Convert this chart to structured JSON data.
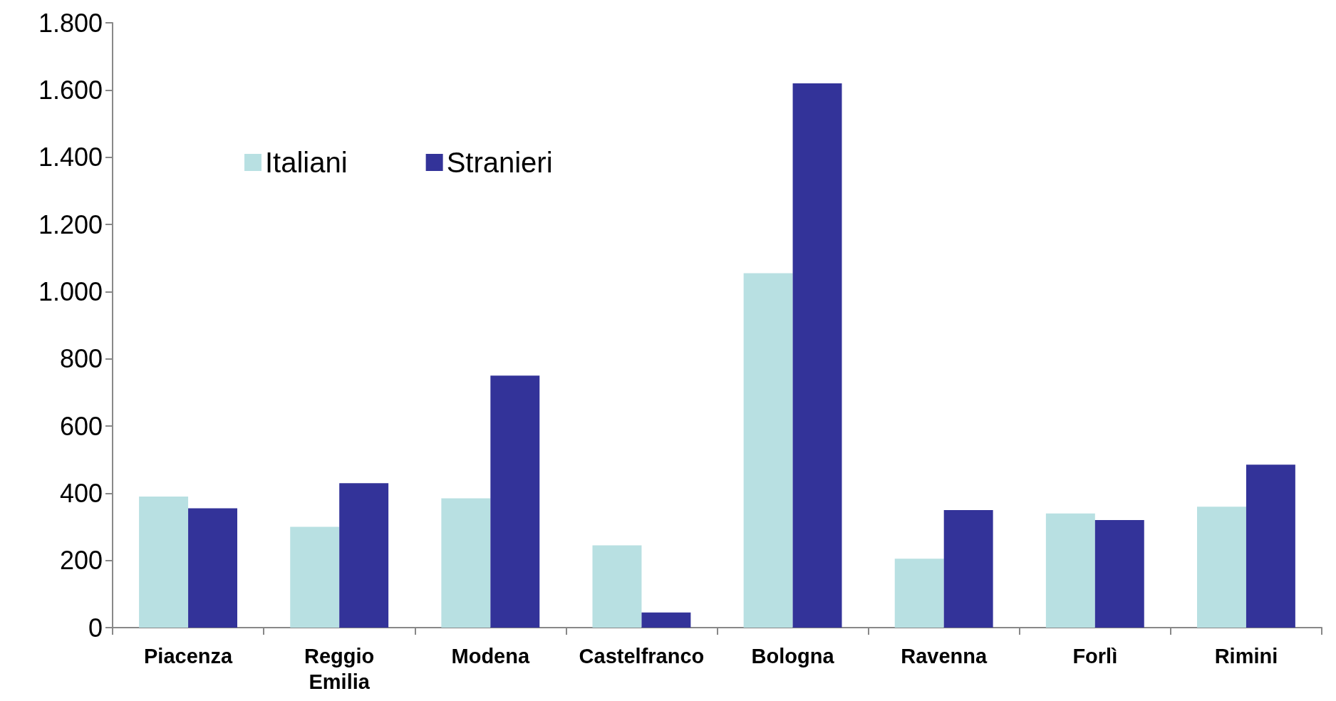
{
  "chart_data": {
    "type": "bar",
    "categories": [
      "Piacenza",
      "Reggio Emilia",
      "Modena",
      "Castelfranco",
      "Bologna",
      "Ravenna",
      "Forlì",
      "Rimini"
    ],
    "series": [
      {
        "name": "Italiani",
        "color": "#b8e0e2",
        "values": [
          390,
          300,
          385,
          245,
          1055,
          205,
          340,
          360
        ]
      },
      {
        "name": "Stranieri",
        "color": "#333399",
        "values": [
          355,
          430,
          750,
          45,
          1620,
          350,
          320,
          485
        ]
      }
    ],
    "ylim": [
      0,
      1800
    ],
    "yticks": [
      {
        "value": 0,
        "label": "0"
      },
      {
        "value": 200,
        "label": "200"
      },
      {
        "value": 400,
        "label": "400"
      },
      {
        "value": 600,
        "label": "600"
      },
      {
        "value": 800,
        "label": "800"
      },
      {
        "value": 1000,
        "label": "1.000"
      },
      {
        "value": 1200,
        "label": "1.200"
      },
      {
        "value": 1400,
        "label": "1.400"
      },
      {
        "value": 1600,
        "label": "1.600"
      },
      {
        "value": 1800,
        "label": "1.800"
      }
    ],
    "grid": false,
    "legend": "top left"
  }
}
